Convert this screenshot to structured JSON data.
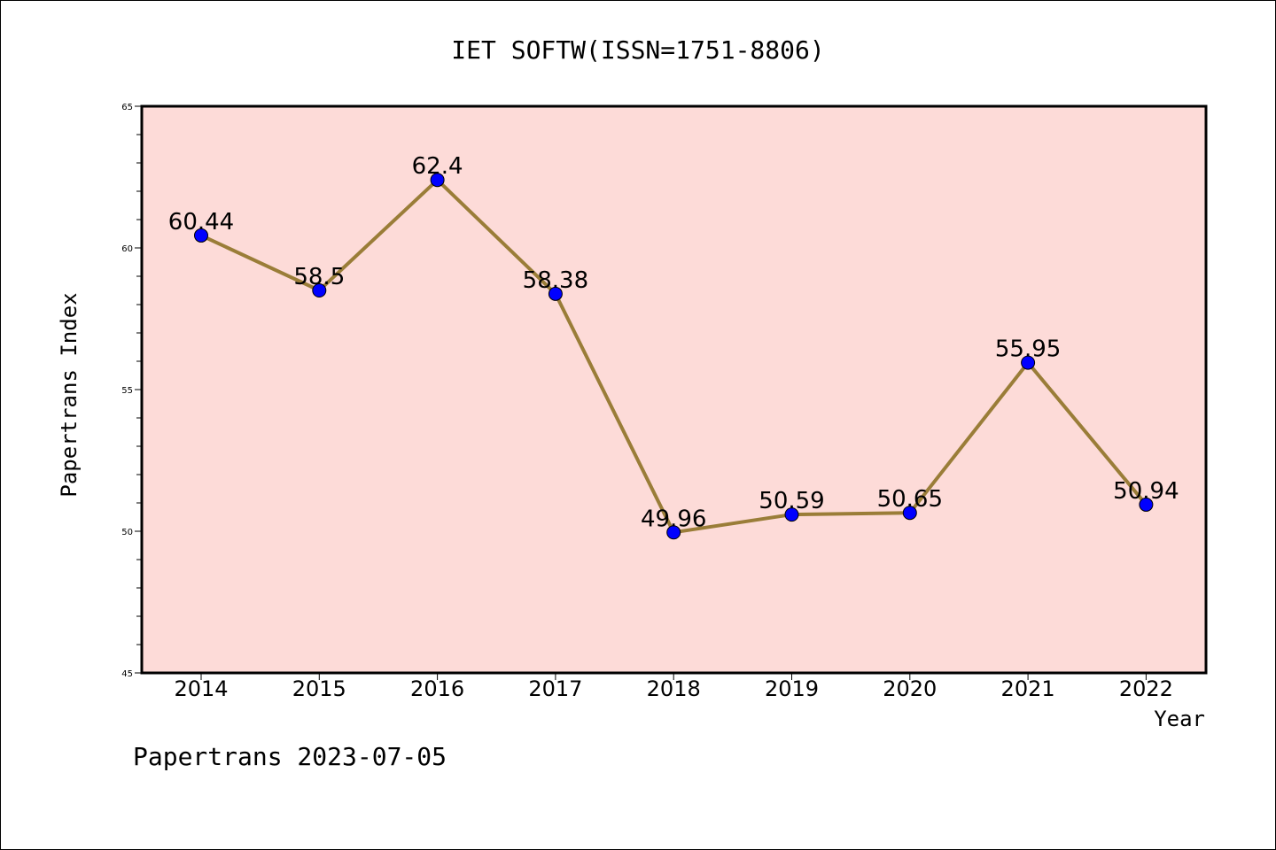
{
  "chart_data": {
    "type": "line",
    "title": "IET SOFTW(ISSN=1751-8806)",
    "xlabel": "Year",
    "ylabel": "Papertrans Index",
    "categories": [
      "2014",
      "2015",
      "2016",
      "2017",
      "2018",
      "2019",
      "2020",
      "2021",
      "2022"
    ],
    "values": [
      60.44,
      58.5,
      62.4,
      58.38,
      49.96,
      50.59,
      50.65,
      55.95,
      50.94
    ],
    "data_labels": [
      "60.44",
      "58.5",
      "62.4",
      "58.38",
      "49.96",
      "50.59",
      "50.65",
      "55.95",
      "50.94"
    ],
    "ylim": [
      45,
      65
    ],
    "yticks": [
      45,
      50,
      55,
      60,
      65
    ],
    "grid": false,
    "footer": "Papertrans 2023-07-05",
    "colors": {
      "plot_background": "#fddbd8",
      "line": "#9a7d38",
      "marker": "#0000ff",
      "frame": "#000000"
    }
  }
}
